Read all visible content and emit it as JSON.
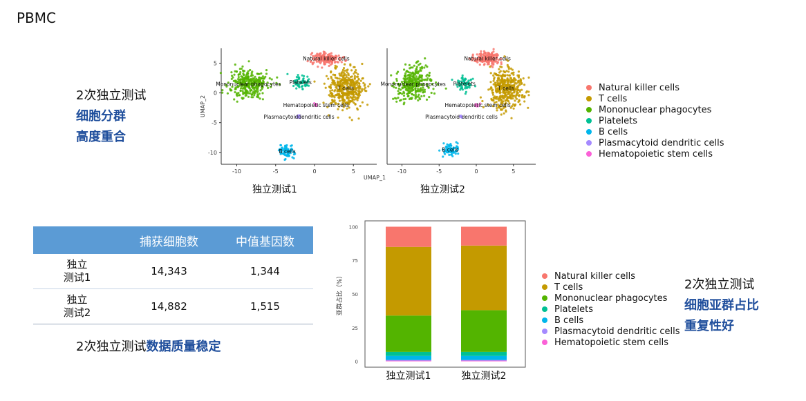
{
  "slide_title": "PBMC",
  "umap_caption": {
    "line1": "2次独立测试",
    "line2": "细胞分群",
    "line3": "高度重合"
  },
  "stack_caption": {
    "line1": "2次独立测试",
    "line2": "细胞亚群占比",
    "line3": "重复性好"
  },
  "colors": {
    "Natural killer cells": "#f8766d",
    "T cells": "#c49a00",
    "Mononuclear phagocytes": "#53b400",
    "Platelets": "#00c094",
    "B cells": "#00b6eb",
    "Plasmacytoid dendritic cells": "#a58aff",
    "Hematopoietic stem cells": "#fb61d7"
  },
  "table": {
    "headers": [
      "",
      "捕获细胞数",
      "中值基因数"
    ],
    "rows": [
      {
        "label": [
          "独立",
          "测试1"
        ],
        "cells": "14,343",
        "genes": "1,344"
      },
      {
        "label": [
          "独立",
          "测试2"
        ],
        "cells": "14,882",
        "genes": "1,515"
      }
    ]
  },
  "quality_note": {
    "prefix": "2次独立测试",
    "highlight": "数据质量稳定"
  },
  "chart_data": [
    {
      "type": "scatter",
      "subtype": "umap",
      "xlabel": "UMAP_1",
      "ylabel": "UMAP_2",
      "x_ticks": [
        -10,
        -5,
        0,
        5
      ],
      "y_ticks": [
        5,
        0,
        -5,
        -10
      ],
      "panels": [
        {
          "title": "独立测试1",
          "clusters": [
            {
              "name": "Natural killer cells",
              "label": "Natural killer cells",
              "center": [
                1.5,
                5.8
              ],
              "spread": [
                1.8,
                1.0
              ],
              "n": 180
            },
            {
              "name": "T cells",
              "label": "T cells",
              "center": [
                4.0,
                0.8
              ],
              "spread": [
                2.3,
                3.2
              ],
              "n": 420
            },
            {
              "name": "Mononuclear phagocytes",
              "label": "Mononuclear phagocytes",
              "center": [
                -8.5,
                1.5
              ],
              "spread": [
                2.5,
                2.6
              ],
              "n": 300
            },
            {
              "name": "Platelets",
              "label": "Platelets",
              "center": [
                -1.8,
                1.8
              ],
              "spread": [
                1.2,
                1.2
              ],
              "n": 60
            },
            {
              "name": "B cells",
              "label": "B cells",
              "center": [
                -3.5,
                -9.8
              ],
              "spread": [
                1.0,
                1.0
              ],
              "n": 80
            },
            {
              "name": "Plasmacytoid dendritic cells",
              "label": "Plasmacytoiddendritic cells",
              "center": [
                -2.0,
                -4.0
              ],
              "spread": [
                0.3,
                0.3
              ],
              "n": 6
            },
            {
              "name": "Hematopoietic stem cells",
              "label": "Hematopoietic stem cells",
              "center": [
                0.2,
                -2.0
              ],
              "spread": [
                0.3,
                0.3
              ],
              "n": 6
            }
          ]
        },
        {
          "title": "独立测试2",
          "clusters": [
            {
              "name": "Natural killer cells",
              "label": "Natural killer cells",
              "center": [
                1.5,
                5.8
              ],
              "spread": [
                1.8,
                1.0
              ],
              "n": 180
            },
            {
              "name": "T cells",
              "label": "T cells",
              "center": [
                4.0,
                0.8
              ],
              "spread": [
                2.3,
                3.2
              ],
              "n": 420
            },
            {
              "name": "Mononuclear phagocytes",
              "label": "Mononuclear phagocytes",
              "center": [
                -8.5,
                1.5
              ],
              "spread": [
                2.5,
                2.6
              ],
              "n": 300
            },
            {
              "name": "Platelets",
              "label": "Platelets",
              "center": [
                -1.6,
                1.6
              ],
              "spread": [
                1.2,
                1.2
              ],
              "n": 60
            },
            {
              "name": "B cells",
              "label": "B cells",
              "center": [
                -3.5,
                -9.5
              ],
              "spread": [
                1.0,
                1.0
              ],
              "n": 80
            },
            {
              "name": "Plasmacytoid dendritic cells",
              "label": "Plasmacytoid dendritic cells",
              "center": [
                -2.0,
                -4.0
              ],
              "spread": [
                0.3,
                0.3
              ],
              "n": 6
            },
            {
              "name": "Hematopoietic stem cells",
              "label": "Hematopoietic stem cells",
              "center": [
                0.2,
                -2.0
              ],
              "spread": [
                0.3,
                0.3
              ],
              "n": 6
            }
          ]
        }
      ],
      "legend": [
        "Natural killer cells",
        "T cells",
        "Mononuclear phagocytes",
        "Platelets",
        "B cells",
        "Plasmacytoid dendritic cells",
        "Hematopoietic stem cells"
      ],
      "legend_position": "right"
    },
    {
      "type": "bar",
      "stacked": true,
      "categories": [
        "独立测试1",
        "独立测试2"
      ],
      "ylabel": "亚群占比（%）",
      "ylim": [
        0,
        100
      ],
      "y_ticks": [
        0,
        25,
        50,
        75,
        100
      ],
      "series": [
        {
          "name": "Natural killer cells",
          "values": [
            15,
            14
          ]
        },
        {
          "name": "T cells",
          "values": [
            51,
            48
          ]
        },
        {
          "name": "Mononuclear phagocytes",
          "values": [
            27,
            31
          ]
        },
        {
          "name": "Platelets",
          "values": [
            3,
            3
          ]
        },
        {
          "name": "B cells",
          "values": [
            3,
            3
          ]
        },
        {
          "name": "Plasmacytoid dendritic cells",
          "values": [
            0.5,
            0.5
          ]
        },
        {
          "name": "Hematopoietic stem cells",
          "values": [
            0.5,
            0.5
          ]
        }
      ],
      "legend": [
        "Natural killer cells",
        "T cells",
        "Mononuclear phagocytes",
        "Platelets",
        "B cells",
        "Plasmacytoid dendritic cells",
        "Hematopoietic stem cells"
      ],
      "legend_position": "right"
    }
  ]
}
